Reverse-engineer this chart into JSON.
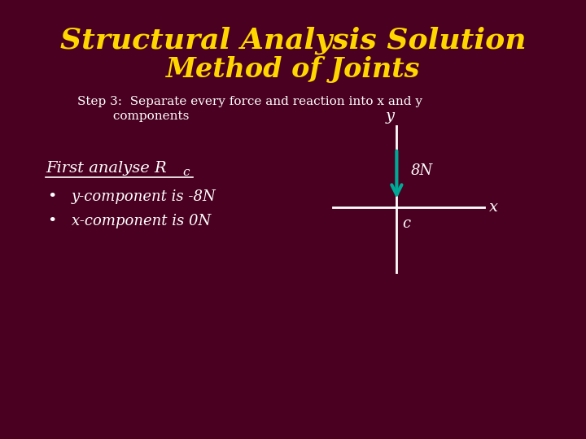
{
  "title_line1": "Structural Analysis Solution",
  "title_line2": "Method of Joints",
  "title_color": "#FFD700",
  "background_color": "#4a0020",
  "step_text_line1": "Step 3:  Separate every force and reaction into x and y",
  "step_text_line2": "         components",
  "step_text_color": "#FFFFFF",
  "body_text_color": "#FFFFFF",
  "first_analyse_text": "First analyse R",
  "first_analyse_subscript": "c",
  "bullet1": "y-component is -8N",
  "bullet2": "x-component is 0N",
  "arrow_color": "#00A896",
  "arrow_label": "8N",
  "origin_label": "c",
  "x_label": "x",
  "y_label": "y",
  "axis_color": "#FFFFFF",
  "label_color": "#FFFFFF"
}
